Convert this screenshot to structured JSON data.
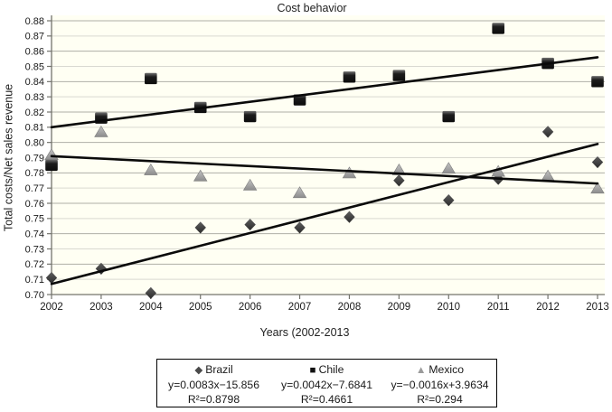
{
  "title": "Cost behavior",
  "axes": {
    "y_title": "Total costs/Net sales revenue",
    "x_title": "Years (2002-2013"
  },
  "colors": {
    "plot_bg": "#FFFFF3",
    "grid_dark": "#AFAFA7",
    "grid_light": "#D9D9D1",
    "axis_line": "#73736C",
    "tick_text": "#1a1a1a",
    "trend_line": "#0a0a0a",
    "brazil": "#4a4a4a",
    "chile": "#141414",
    "mexico": "#9b9b9b"
  },
  "chart_data": {
    "type": "scatter",
    "title": "Cost behavior",
    "xlabel": "Years (2002-2013",
    "ylabel": "Total costs/Net sales revenue",
    "ylim": [
      0.7,
      0.88
    ],
    "ytick_step": 0.01,
    "grid": true,
    "legend_position": "bottom",
    "x": [
      2002,
      2003,
      2004,
      2005,
      2006,
      2007,
      2008,
      2009,
      2010,
      2011,
      2012,
      2013
    ],
    "series": [
      {
        "name": "Brazil",
        "marker": "diamond",
        "color": "#4a4a4a",
        "values": [
          0.711,
          0.717,
          0.701,
          0.744,
          0.746,
          0.744,
          0.751,
          0.775,
          0.762,
          0.776,
          0.807,
          0.787
        ],
        "trendline": {
          "equation": "y=0.0083x−15.856",
          "r2": "R²=0.8798",
          "start": 0.707,
          "end": 0.799
        }
      },
      {
        "name": "Chile",
        "marker": "square",
        "color": "#141414",
        "values": [
          0.785,
          0.816,
          0.842,
          0.823,
          0.817,
          0.828,
          0.843,
          0.844,
          0.817,
          0.875,
          0.852,
          0.84
        ],
        "trendline": {
          "equation": "y=0.0042x−7.6841",
          "r2": "R²=0.4661",
          "start": 0.81,
          "end": 0.856
        }
      },
      {
        "name": "Mexico",
        "marker": "triangle",
        "color": "#9b9b9b",
        "values": [
          0.792,
          0.807,
          0.782,
          0.778,
          0.772,
          0.767,
          0.78,
          0.782,
          0.783,
          0.781,
          0.778,
          0.77
        ],
        "trendline": {
          "equation": "y=−0.0016x+3.9634",
          "r2": "R²=0.294",
          "start": 0.791,
          "end": 0.773
        }
      }
    ]
  },
  "legend": {
    "entries": [
      {
        "glyph": "◆",
        "label": "Brazil",
        "equation": "y=0.0083x−15.856",
        "r2": "R²=0.8798"
      },
      {
        "glyph": "■",
        "label": "Chile",
        "equation": "y=0.0042x−7.6841",
        "r2": "R²=0.4661"
      },
      {
        "glyph": "▲",
        "label": "Mexico",
        "equation": "y=−0.0016x+3.9634",
        "r2": "R²=0.294"
      }
    ]
  }
}
